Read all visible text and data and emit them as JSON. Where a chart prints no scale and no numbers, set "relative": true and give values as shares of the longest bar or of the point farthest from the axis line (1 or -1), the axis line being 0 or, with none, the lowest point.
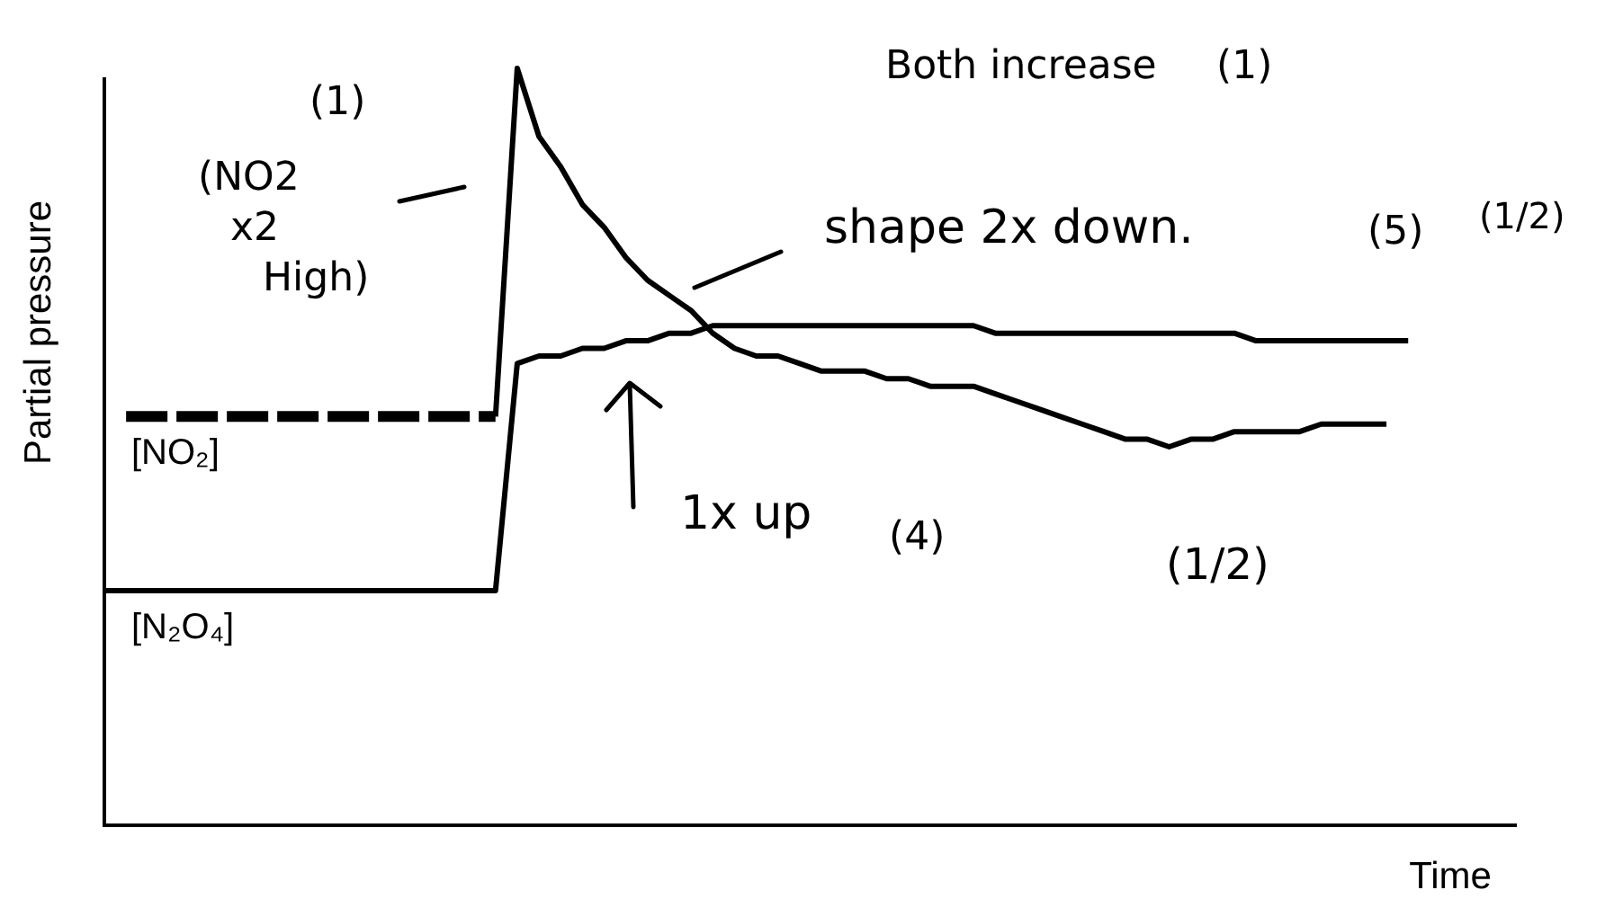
{
  "chart_data": {
    "type": "line",
    "relative": true,
    "xlabel": "Time",
    "ylabel": "Partial pressure",
    "categories": [
      null,
      null,
      null,
      null,
      null,
      null,
      null,
      null,
      null,
      null,
      null,
      null,
      null,
      null,
      null,
      null,
      null,
      null,
      null,
      null,
      null,
      null,
      null,
      null,
      null,
      null,
      null,
      null,
      null,
      null,
      null,
      null,
      null,
      null,
      null,
      null,
      null,
      null,
      null,
      null,
      null,
      null,
      null,
      null,
      null,
      null,
      null,
      null,
      null,
      null,
      null,
      null,
      null,
      null,
      null,
      null,
      null,
      null,
      null,
      null,
      null,
      null,
      null,
      null,
      null,
      null
    ],
    "series": [
      {
        "name": "[NO₂]",
        "color": "#000000",
        "line_style": "dashed",
        "values": [
          null,
          0.54,
          0.54,
          0.54,
          0.54,
          0.54,
          0.54,
          0.54,
          0.54,
          0.54,
          0.54,
          0.54,
          0.54,
          0.54,
          0.54,
          0.54,
          0.54,
          0.54,
          0.54,
          null,
          null,
          null,
          null,
          null,
          null,
          null,
          null,
          null,
          null,
          null,
          null,
          null,
          null,
          null,
          null,
          null,
          null,
          null,
          null,
          null,
          null,
          null,
          null,
          null,
          null,
          null,
          null,
          null,
          null,
          null,
          null,
          null,
          null,
          null,
          null,
          null,
          null,
          null,
          null,
          null,
          null,
          null,
          null,
          null,
          null,
          null
        ]
      },
      {
        "color": "#000000",
        "values": [
          null,
          null,
          null,
          null,
          null,
          null,
          null,
          null,
          null,
          null,
          null,
          null,
          null,
          null,
          null,
          null,
          null,
          null,
          0.54,
          1,
          0.91,
          0.87,
          0.82,
          0.79,
          0.75,
          0.72,
          0.7,
          0.68,
          0.65,
          0.63,
          0.62,
          0.62,
          0.61,
          0.6,
          0.6,
          0.6,
          0.59,
          0.59,
          0.58,
          0.58,
          0.58,
          0.57,
          0.56,
          0.55,
          0.54,
          0.53,
          0.52,
          0.51,
          0.51,
          0.5,
          0.51,
          0.51,
          0.52,
          0.52,
          0.52,
          0.52,
          0.53,
          0.53,
          0.53,
          0.53,
          null,
          null,
          null,
          null,
          null,
          null
        ]
      },
      {
        "name": "[N₂O₄]",
        "color": "#000000",
        "values": [
          0.31,
          0.31,
          0.31,
          0.31,
          0.31,
          0.31,
          0.31,
          0.31,
          0.31,
          0.31,
          0.31,
          0.31,
          0.31,
          0.31,
          0.31,
          0.31,
          0.31,
          0.31,
          0.31,
          0.61,
          0.62,
          0.62,
          0.63,
          0.63,
          0.64,
          0.64,
          0.65,
          0.65,
          0.66,
          0.66,
          0.66,
          0.66,
          0.66,
          0.66,
          0.66,
          0.66,
          0.66,
          0.66,
          0.66,
          0.66,
          0.66,
          0.65,
          0.65,
          0.65,
          0.65,
          0.65,
          0.65,
          0.65,
          0.65,
          0.65,
          0.65,
          0.65,
          0.65,
          0.64,
          0.64,
          0.64,
          0.64,
          0.64,
          0.64,
          0.64,
          0.64,
          null,
          null,
          null,
          null,
          null
        ]
      }
    ],
    "annotations": [
      "(1)",
      "Both increase",
      "(1)",
      "(NO2 x2 High)",
      "shape 2x down.",
      "(5)",
      "(1/2)",
      "1x up",
      "(4)",
      "(1/2)"
    ]
  }
}
